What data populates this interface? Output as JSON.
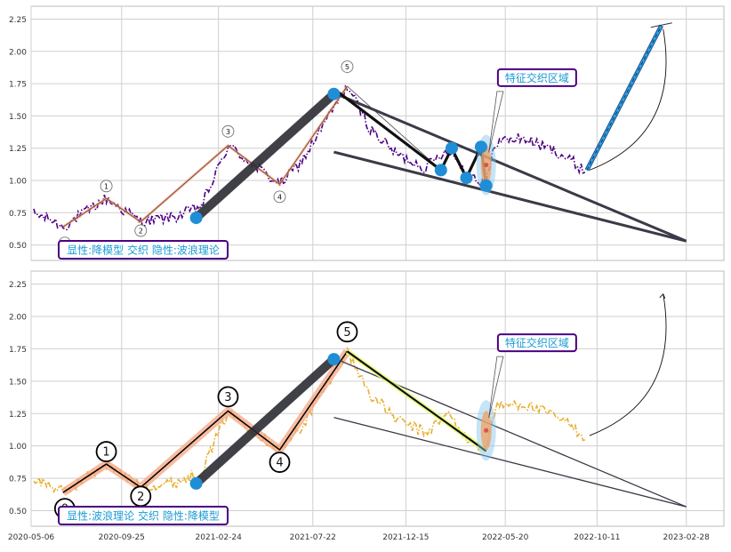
{
  "chart_data": [
    {
      "type": "line",
      "panel": "top",
      "xlim": [
        "2020-05-06",
        "2023-04-28"
      ],
      "ylim": [
        0.38,
        2.35
      ],
      "xticks": [
        "2020-05-06",
        "2020-09-25",
        "2021-02-24",
        "2021-07-22",
        "2021-12-15",
        "2022-05-20",
        "2022-10-11",
        "2023-02-28"
      ],
      "yticks": [
        "0.50",
        "0.75",
        "1.00",
        "1.25",
        "1.50",
        "1.75",
        "2.00",
        "2.25"
      ],
      "grid": true,
      "price_color": "#4b0082",
      "wave_points": [
        {
          "label": "0",
          "date": "2020-06-25",
          "value": 0.64
        },
        {
          "label": "1",
          "date": "2020-09-01",
          "value": 0.86
        },
        {
          "label": "2",
          "date": "2020-10-25",
          "value": 0.68
        },
        {
          "label": "3",
          "date": "2021-03-11",
          "value": 1.27
        },
        {
          "label": "4",
          "date": "2021-05-31",
          "value": 0.97
        },
        {
          "label": "5",
          "date": "2021-09-14",
          "value": 1.73
        }
      ],
      "highlight_points": [
        {
          "date": "2021-01-20",
          "value": 0.71
        },
        {
          "date": "2021-08-24",
          "value": 1.67
        },
        {
          "date": "2022-02-08",
          "value": 1.08
        },
        {
          "date": "2022-02-25",
          "value": 1.25
        },
        {
          "date": "2022-03-20",
          "value": 1.02
        },
        {
          "date": "2022-04-12",
          "value": 1.26
        },
        {
          "date": "2022-04-20",
          "value": 0.96
        }
      ],
      "forecast": {
        "from_date": "2022-09-25",
        "from_value": 1.08,
        "to_date": "2023-01-20",
        "to_value": 2.2
      },
      "annotation": "特征交织区域",
      "label": "显性:降模型 交织 隐性:波浪理论"
    },
    {
      "type": "line",
      "panel": "bottom",
      "xlim": [
        "2020-05-06",
        "2023-04-28"
      ],
      "ylim": [
        0.38,
        2.35
      ],
      "xticks": [
        "2020-05-06",
        "2020-09-25",
        "2021-02-24",
        "2021-07-22",
        "2021-12-15",
        "2022-05-20",
        "2022-10-11",
        "2023-02-28"
      ],
      "yticks": [
        "0.50",
        "0.75",
        "1.00",
        "1.25",
        "1.50",
        "1.75",
        "2.00",
        "2.25"
      ],
      "grid": true,
      "price_color": "#e8b030",
      "wave_points": [
        {
          "label": "0",
          "date": "2020-06-25",
          "value": 0.64
        },
        {
          "label": "1",
          "date": "2020-09-01",
          "value": 0.86
        },
        {
          "label": "2",
          "date": "2020-10-25",
          "value": 0.68
        },
        {
          "label": "3",
          "date": "2021-03-11",
          "value": 1.27
        },
        {
          "label": "4",
          "date": "2021-05-31",
          "value": 0.97
        },
        {
          "label": "5",
          "date": "2021-09-14",
          "value": 1.73
        }
      ],
      "highlight_points": [
        {
          "date": "2021-01-20",
          "value": 0.71
        },
        {
          "date": "2021-08-24",
          "value": 1.67
        }
      ],
      "annotation": "特征交织区域",
      "label": "显性:波浪理论 交织 隐性:降模型"
    }
  ],
  "colors": {
    "grid": "#cfcfcf",
    "frame": "#bdbdbd",
    "marker": "#1f8ed6",
    "channel": "#3a3a48",
    "label_border": "#4b0082",
    "label_text": "#1b9ad3",
    "wave_glow": "#f4a582"
  }
}
